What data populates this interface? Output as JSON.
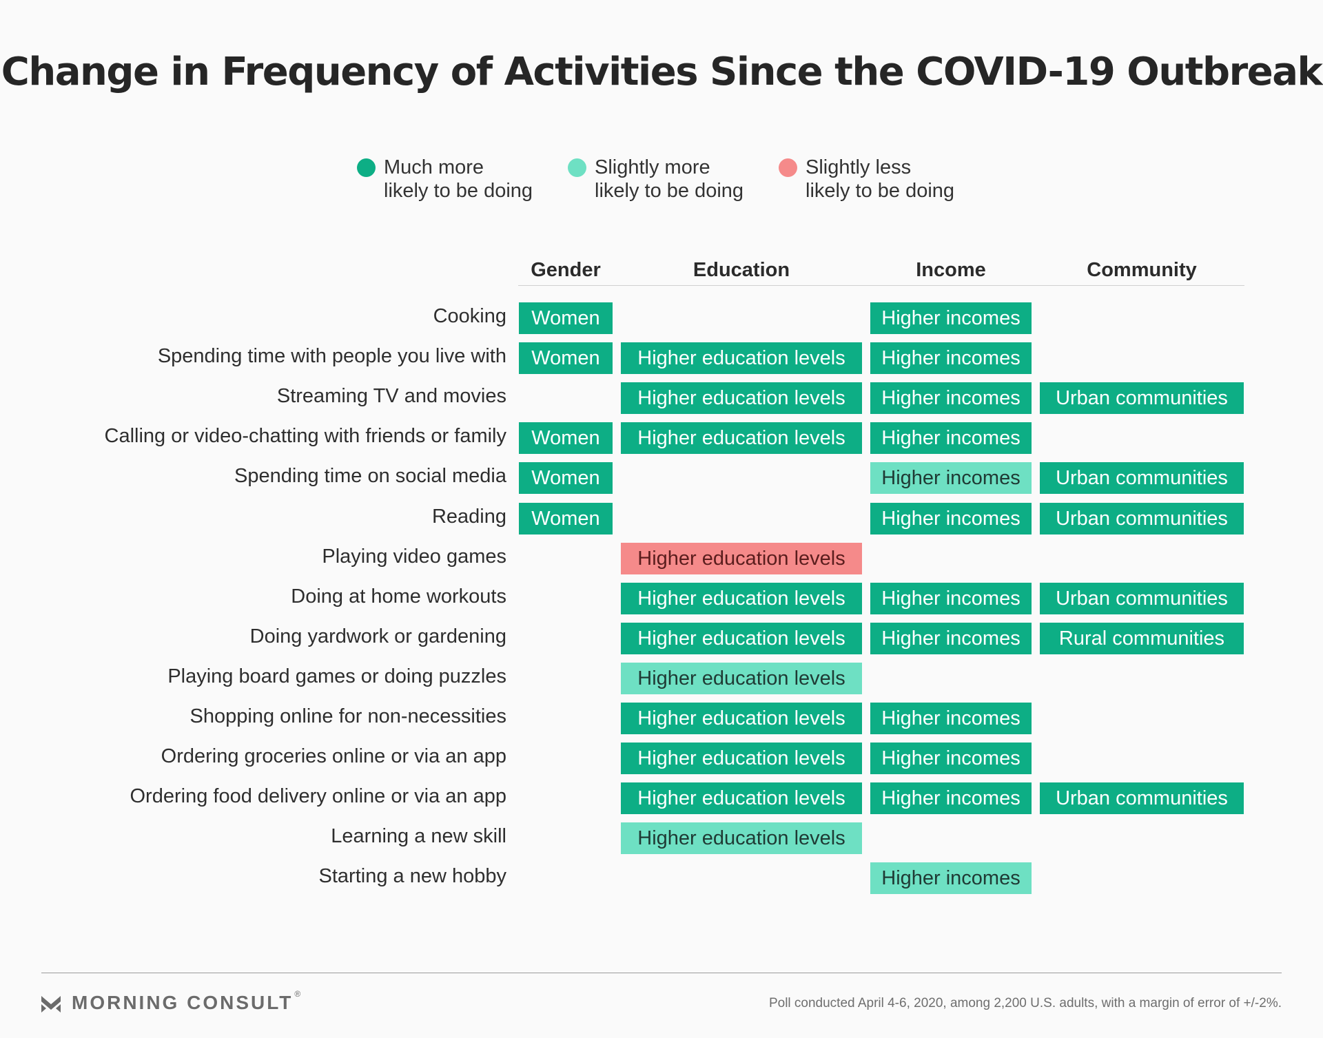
{
  "title": "Change in Frequency of Activities Since the COVID-19 Outbreak",
  "colors": {
    "much_more": "#0dae85",
    "slightly_more": "#6ee0c3",
    "slightly_less": "#f58a8a"
  },
  "legend": [
    {
      "key": "much_more",
      "line1": "Much more",
      "line2": "likely to be doing",
      "color": "#0dae85"
    },
    {
      "key": "slightly_more",
      "line1": "Slightly more",
      "line2": "likely to be doing",
      "color": "#6ee0c3"
    },
    {
      "key": "slightly_less",
      "line1": "Slightly less",
      "line2": "likely to be doing",
      "color": "#f58a8a"
    }
  ],
  "chart_data": {
    "type": "table",
    "columns": [
      "Gender",
      "Education",
      "Income",
      "Community"
    ],
    "rows": [
      {
        "label": "Cooking",
        "cells": [
          {
            "text": "Women",
            "level": "much_more"
          },
          null,
          {
            "text": "Higher incomes",
            "level": "much_more"
          },
          null
        ]
      },
      {
        "label": "Spending time with people you live with",
        "cells": [
          {
            "text": "Women",
            "level": "much_more"
          },
          {
            "text": "Higher education levels",
            "level": "much_more"
          },
          {
            "text": "Higher incomes",
            "level": "much_more"
          },
          null
        ]
      },
      {
        "label": "Streaming TV and movies",
        "cells": [
          null,
          {
            "text": "Higher education levels",
            "level": "much_more"
          },
          {
            "text": "Higher incomes",
            "level": "much_more"
          },
          {
            "text": "Urban communities",
            "level": "much_more"
          }
        ]
      },
      {
        "label": "Calling or video-chatting with friends or family",
        "cells": [
          {
            "text": "Women",
            "level": "much_more"
          },
          {
            "text": "Higher education levels",
            "level": "much_more"
          },
          {
            "text": "Higher incomes",
            "level": "much_more"
          },
          null
        ]
      },
      {
        "label": "Spending time on social media",
        "cells": [
          {
            "text": "Women",
            "level": "much_more"
          },
          null,
          {
            "text": "Higher incomes",
            "level": "slightly_more"
          },
          {
            "text": "Urban communities",
            "level": "much_more"
          }
        ]
      },
      {
        "label": "Reading",
        "cells": [
          {
            "text": "Women",
            "level": "much_more"
          },
          null,
          {
            "text": "Higher incomes",
            "level": "much_more"
          },
          {
            "text": "Urban communities",
            "level": "much_more"
          }
        ]
      },
      {
        "label": "Playing video games",
        "cells": [
          null,
          {
            "text": "Higher education levels",
            "level": "slightly_less"
          },
          null,
          null
        ]
      },
      {
        "label": "Doing at home workouts",
        "cells": [
          null,
          {
            "text": "Higher education levels",
            "level": "much_more"
          },
          {
            "text": "Higher incomes",
            "level": "much_more"
          },
          {
            "text": "Urban communities",
            "level": "much_more"
          }
        ]
      },
      {
        "label": "Doing yardwork or gardening",
        "cells": [
          null,
          {
            "text": "Higher education levels",
            "level": "much_more"
          },
          {
            "text": "Higher incomes",
            "level": "much_more"
          },
          {
            "text": "Rural communities",
            "level": "much_more"
          }
        ]
      },
      {
        "label": "Playing board games or doing puzzles",
        "cells": [
          null,
          {
            "text": "Higher education levels",
            "level": "slightly_more"
          },
          null,
          null
        ]
      },
      {
        "label": "Shopping online for non-necessities",
        "cells": [
          null,
          {
            "text": "Higher education levels",
            "level": "much_more"
          },
          {
            "text": "Higher incomes",
            "level": "much_more"
          },
          null
        ]
      },
      {
        "label": "Ordering groceries online or via an app",
        "cells": [
          null,
          {
            "text": "Higher education levels",
            "level": "much_more"
          },
          {
            "text": "Higher incomes",
            "level": "much_more"
          },
          null
        ]
      },
      {
        "label": "Ordering food delivery online or via an app",
        "cells": [
          null,
          {
            "text": "Higher education levels",
            "level": "much_more"
          },
          {
            "text": "Higher incomes",
            "level": "much_more"
          },
          {
            "text": "Urban communities",
            "level": "much_more"
          }
        ]
      },
      {
        "label": "Learning a new skill",
        "cells": [
          null,
          {
            "text": "Higher education levels",
            "level": "slightly_more"
          },
          null,
          null
        ]
      },
      {
        "label": "Starting a new hobby",
        "cells": [
          null,
          null,
          {
            "text": "Higher incomes",
            "level": "slightly_more"
          },
          null
        ]
      }
    ]
  },
  "footer": {
    "brand": "MORNING CONSULT",
    "registered_mark": "®",
    "note": "Poll conducted April 4-6, 2020, among 2,200 U.S. adults, with a margin of error of +/-2%."
  }
}
